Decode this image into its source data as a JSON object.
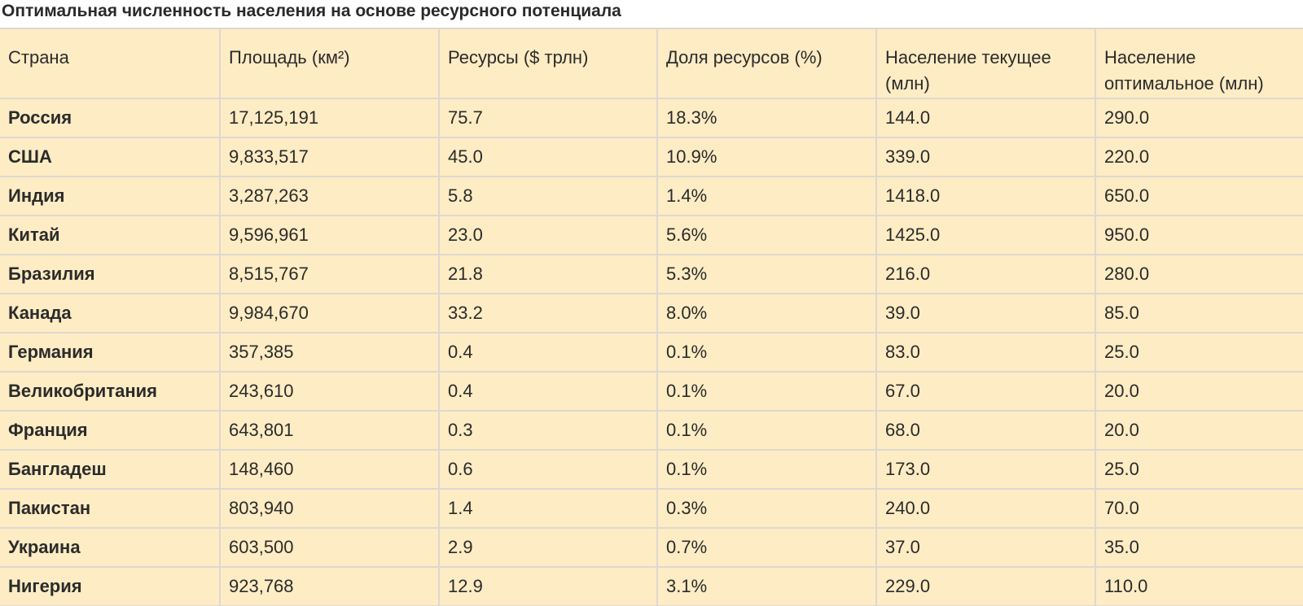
{
  "title": "Оптимальная численность населения на основе ресурсного потенциала",
  "colors": {
    "table_background": "#fdecc4",
    "border": "#ddd8cf",
    "text": "#2b2b2b"
  },
  "table": {
    "headers": [
      "Страна",
      "Площадь (км²)",
      "Ресурсы ($ трлн)",
      "Доля ресурсов (%)",
      "Население текущее (млн)",
      "Население оптимальное (млн)"
    ],
    "rows": [
      [
        "Россия",
        "17,125,191",
        "75.7",
        "18.3%",
        "144.0",
        "290.0"
      ],
      [
        "США",
        "9,833,517",
        "45.0",
        "10.9%",
        "339.0",
        "220.0"
      ],
      [
        "Индия",
        "3,287,263",
        "5.8",
        "1.4%",
        "1418.0",
        "650.0"
      ],
      [
        "Китай",
        "9,596,961",
        "23.0",
        "5.6%",
        "1425.0",
        "950.0"
      ],
      [
        "Бразилия",
        "8,515,767",
        "21.8",
        "5.3%",
        "216.0",
        "280.0"
      ],
      [
        "Канада",
        "9,984,670",
        "33.2",
        "8.0%",
        "39.0",
        "85.0"
      ],
      [
        "Германия",
        "357,385",
        "0.4",
        "0.1%",
        "83.0",
        "25.0"
      ],
      [
        "Великобритания",
        "243,610",
        "0.4",
        "0.1%",
        "67.0",
        "20.0"
      ],
      [
        "Франция",
        "643,801",
        "0.3",
        "0.1%",
        "68.0",
        "20.0"
      ],
      [
        "Бангладеш",
        "148,460",
        "0.6",
        "0.1%",
        "173.0",
        "25.0"
      ],
      [
        "Пакистан",
        "803,940",
        "1.4",
        "0.3%",
        "240.0",
        "70.0"
      ],
      [
        "Украина",
        "603,500",
        "2.9",
        "0.7%",
        "37.0",
        "35.0"
      ],
      [
        "Нигерия",
        "923,768",
        "12.9",
        "3.1%",
        "229.0",
        "110.0"
      ]
    ]
  }
}
